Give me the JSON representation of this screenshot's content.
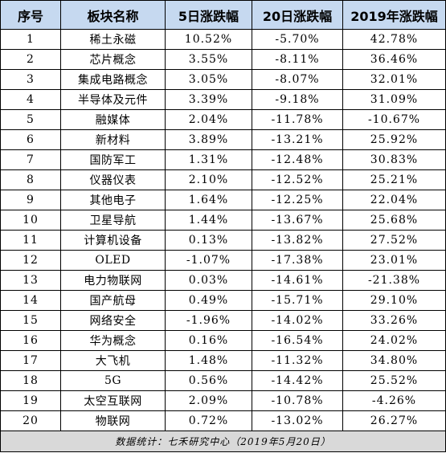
{
  "headers": [
    "序号",
    "板块名称",
    "5日涨跌幅",
    "20日涨跌幅",
    "2019年涨跌幅"
  ],
  "rows": [
    [
      "1",
      "稀土永磁",
      "10.52%",
      "-5.70%",
      "42.78%"
    ],
    [
      "2",
      "芯片概念",
      "3.55%",
      "-8.11%",
      "36.46%"
    ],
    [
      "3",
      "集成电路概念",
      "3.05%",
      "-8.07%",
      "32.01%"
    ],
    [
      "4",
      "半导体及元件",
      "3.39%",
      "-9.18%",
      "31.09%"
    ],
    [
      "5",
      "融媒体",
      "2.04%",
      "-11.78%",
      "-10.67%"
    ],
    [
      "6",
      "新材料",
      "3.89%",
      "-13.21%",
      "25.92%"
    ],
    [
      "7",
      "国防军工",
      "1.31%",
      "-12.48%",
      "30.83%"
    ],
    [
      "8",
      "仪器仪表",
      "2.10%",
      "-12.52%",
      "25.21%"
    ],
    [
      "9",
      "其他电子",
      "1.64%",
      "-12.25%",
      "22.04%"
    ],
    [
      "10",
      "卫星导航",
      "1.44%",
      "-13.67%",
      "25.68%"
    ],
    [
      "11",
      "计算机设备",
      "0.13%",
      "-13.82%",
      "27.52%"
    ],
    [
      "12",
      "OLED",
      "-1.07%",
      "-17.38%",
      "23.01%"
    ],
    [
      "13",
      "电力物联网",
      "0.03%",
      "-14.61%",
      "-21.38%"
    ],
    [
      "14",
      "国产航母",
      "0.49%",
      "-15.71%",
      "29.10%"
    ],
    [
      "15",
      "网络安全",
      "-1.96%",
      "-14.02%",
      "33.26%"
    ],
    [
      "16",
      "华为概念",
      "0.16%",
      "-16.54%",
      "24.02%"
    ],
    [
      "17",
      "大飞机",
      "1.48%",
      "-11.32%",
      "34.80%"
    ],
    [
      "18",
      "5G",
      "0.56%",
      "-14.42%",
      "25.52%"
    ],
    [
      "19",
      "太空互联网",
      "2.09%",
      "-10.78%",
      "-4.26%"
    ],
    [
      "20",
      "物联网",
      "0.72%",
      "-13.02%",
      "26.27%"
    ]
  ],
  "footer": "数据统计：七禾研究中心（2019年5月20日）",
  "colors": {
    "header_bg": "#c6d9f0",
    "footer_bg": "#d9d9d9",
    "border": "#000000"
  }
}
